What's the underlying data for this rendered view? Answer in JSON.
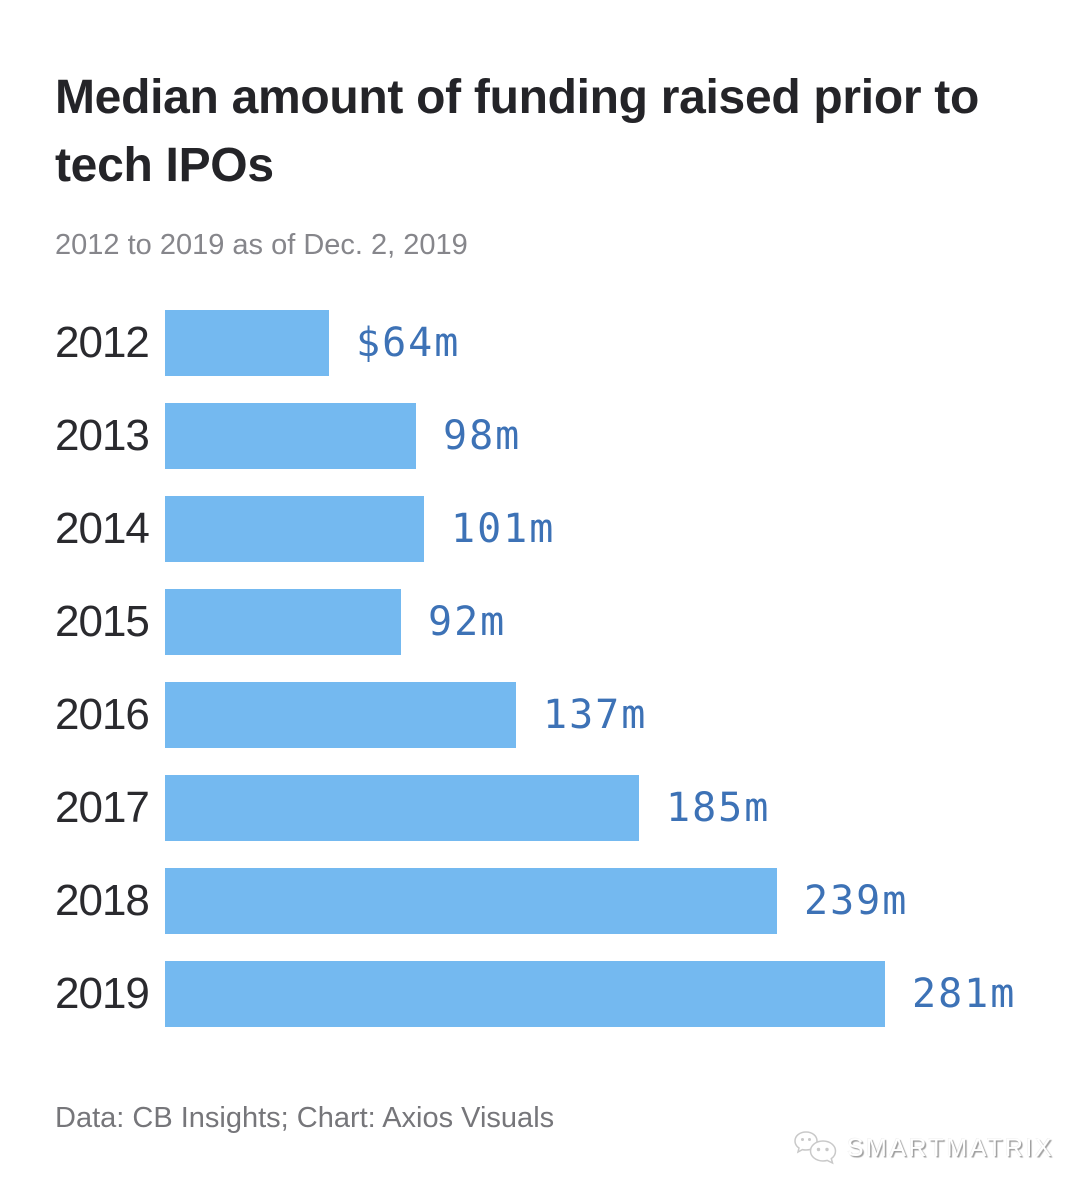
{
  "header": {
    "title": "Median amount of funding raised prior to tech IPOs",
    "subtitle": "2012 to 2019 as of Dec. 2, 2019"
  },
  "footer": {
    "credit": "Data: CB Insights; Chart: Axios Visuals"
  },
  "watermark": {
    "label": "SMARTMATRIX",
    "icon": "smartmatrix-bubbles-logo"
  },
  "colors": {
    "background": "#ffffff",
    "bar": "#74b9f0",
    "value_label": "#3d72b6",
    "title": "#242428",
    "year_label": "#2a2a2e",
    "subtitle": "#86868b",
    "credit": "#76767a"
  },
  "chart_data": {
    "type": "bar",
    "orientation": "horizontal",
    "title": "Median amount of funding raised prior to tech IPOs",
    "subtitle": "2012 to 2019 as of Dec. 2, 2019",
    "unit": "million USD",
    "categories": [
      "2012",
      "2013",
      "2014",
      "2015",
      "2016",
      "2017",
      "2018",
      "2019"
    ],
    "values": [
      64,
      98,
      101,
      92,
      137,
      185,
      239,
      281
    ],
    "value_labels": [
      "$64m",
      "98m",
      "101m",
      "92m",
      "137m",
      "185m",
      "239m",
      "281m"
    ],
    "xlim": [
      0,
      281
    ],
    "grid": false,
    "legend": false,
    "xlabel": "",
    "ylabel": ""
  }
}
